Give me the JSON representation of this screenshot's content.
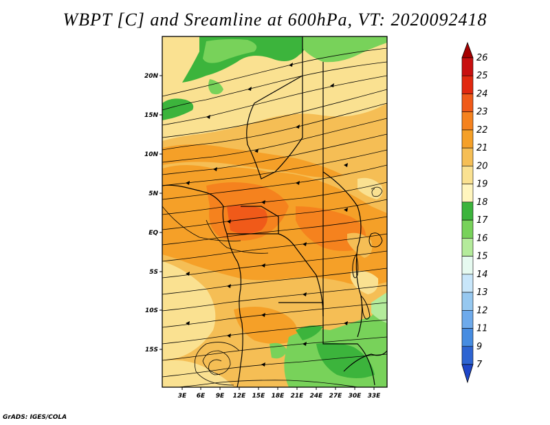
{
  "title": "WBPT [C] and Sreamline at 600hPa, VT: 2020092418",
  "credit": "GrADS: IGES/COLA",
  "map": {
    "lat_labels": [
      "20N",
      "15N",
      "10N",
      "5N",
      "EQ",
      "5S",
      "10S",
      "15S"
    ],
    "lon_labels": [
      "3E",
      "6E",
      "9E",
      "12E",
      "15E",
      "18E",
      "21E",
      "24E",
      "27E",
      "30E",
      "33E"
    ]
  },
  "colorbar": {
    "labels": [
      "26",
      "25",
      "24",
      "23",
      "22",
      "21",
      "20",
      "19",
      "18",
      "17",
      "16",
      "15",
      "14",
      "13",
      "12",
      "11",
      "9",
      "7"
    ],
    "colors": [
      "#a50000",
      "#c80f0f",
      "#e1280f",
      "#f05a19",
      "#f5821e",
      "#f5a028",
      "#f5be55",
      "#fae191",
      "#fff5be",
      "#3cb43c",
      "#78d25a",
      "#b4eb9b",
      "#e6faf0",
      "#c8e6fa",
      "#96c8f0",
      "#6eaaeb",
      "#468ce1",
      "#2d64d2",
      "#1e46c8"
    ]
  }
}
